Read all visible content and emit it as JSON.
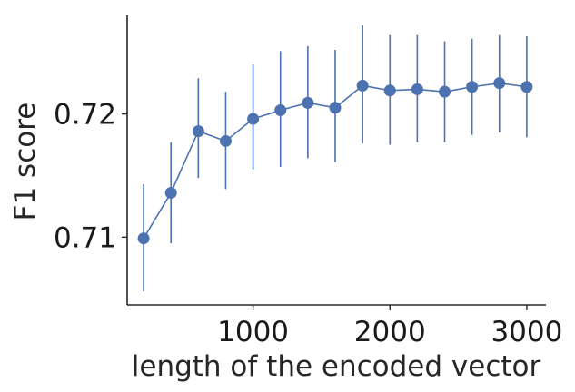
{
  "chart_data": {
    "type": "line",
    "title": "",
    "xlabel": "length of the encoded vector",
    "ylabel": "F1 score",
    "xlim": [
      80,
      3140
    ],
    "ylim": [
      0.7045,
      0.728
    ],
    "xticks": [
      1000,
      2000,
      3000
    ],
    "xtick_labels": [
      "1000",
      "2000",
      "3000"
    ],
    "yticks": [
      0.71,
      0.72
    ],
    "ytick_labels": [
      "0.71",
      "0.72"
    ],
    "grid": false,
    "legend": "none",
    "color": "#4c72b0",
    "series": [
      {
        "x": [
          200,
          400,
          600,
          800,
          1000,
          1200,
          1400,
          1600,
          1800,
          2000,
          2200,
          2400,
          2600,
          2800,
          3000
        ],
        "y": [
          0.7099,
          0.7136,
          0.7186,
          0.7178,
          0.7196,
          0.7203,
          0.7209,
          0.7205,
          0.7223,
          0.7219,
          0.722,
          0.7218,
          0.7222,
          0.7225,
          0.7222
        ],
        "err_low": [
          0.7056,
          0.7095,
          0.7148,
          0.7139,
          0.7155,
          0.7157,
          0.7164,
          0.7161,
          0.7176,
          0.7175,
          0.7177,
          0.7177,
          0.7183,
          0.7185,
          0.7181
        ],
        "err_high": [
          0.7143,
          0.7177,
          0.7229,
          0.7218,
          0.724,
          0.7251,
          0.7255,
          0.7252,
          0.7272,
          0.7264,
          0.7264,
          0.7259,
          0.7261,
          0.7264,
          0.7263
        ]
      }
    ]
  }
}
